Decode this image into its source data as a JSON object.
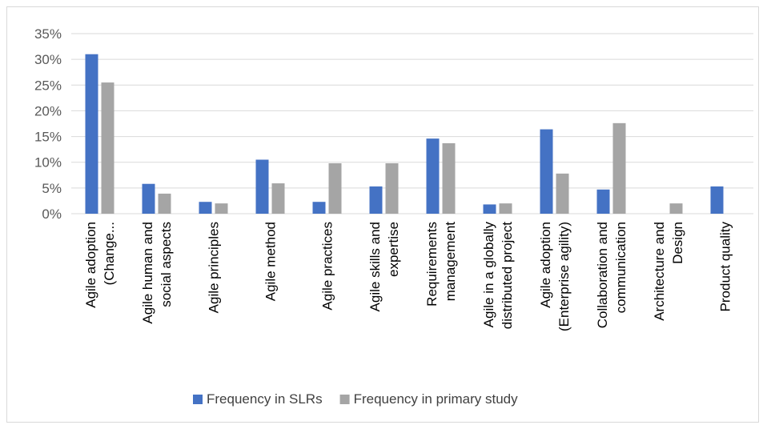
{
  "chart_data": {
    "type": "bar",
    "title": "",
    "xlabel": "",
    "ylabel": "",
    "ylim": [
      0,
      0.35
    ],
    "y_ticks": [
      "0%",
      "5%",
      "10%",
      "15%",
      "20%",
      "25%",
      "30%",
      "35%"
    ],
    "y_tick_values": [
      0,
      0.05,
      0.1,
      0.15,
      0.2,
      0.25,
      0.3,
      0.35
    ],
    "grid": true,
    "legend_position": "bottom",
    "categories": [
      [
        "Agile adoption",
        "(Change..."
      ],
      [
        "Agile human and",
        "social aspects"
      ],
      [
        "Agile principles"
      ],
      [
        "Agile method"
      ],
      [
        "Agile practices"
      ],
      [
        "Agile skills and",
        "expertise"
      ],
      [
        "Requirements",
        "management"
      ],
      [
        "Agile in a globally",
        "distributed project"
      ],
      [
        "Agile adoption",
        "(Enterprise agility)"
      ],
      [
        "Collaboration and",
        "communication"
      ],
      [
        "Architecture and",
        "Design"
      ],
      [
        "Product quality"
      ]
    ],
    "series": [
      {
        "name": "Frequency in SLRs",
        "color": "#4472c4",
        "values": [
          0.31,
          0.058,
          0.023,
          0.105,
          0.023,
          0.053,
          0.146,
          0.018,
          0.164,
          0.047,
          0,
          0.053
        ]
      },
      {
        "name": "Frequency in primary study",
        "color": "#a5a5a5",
        "values": [
          0.255,
          0.039,
          0.02,
          0.059,
          0.098,
          0.098,
          0.137,
          0.02,
          0.078,
          0.176,
          0.02,
          0
        ]
      }
    ]
  }
}
